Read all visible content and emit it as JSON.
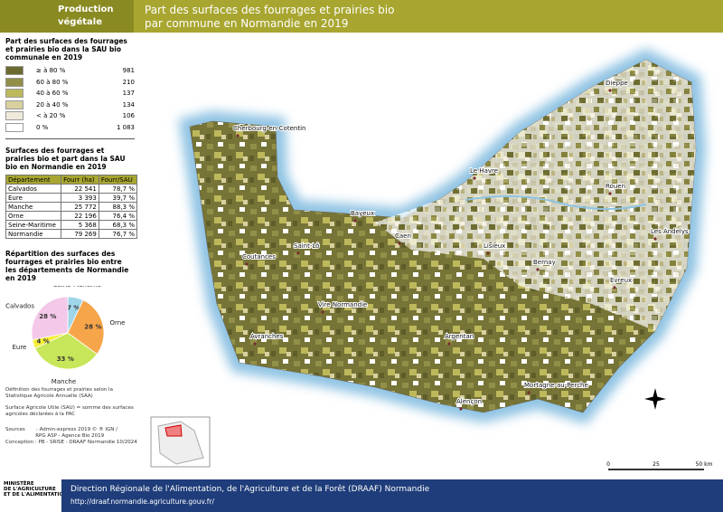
{
  "header": {
    "category": "Production végétale",
    "title_lines": [
      "Part des surfaces des fourrages et prairies bio",
      "par commune en Normandie en 2019"
    ]
  },
  "legend": {
    "title": "Part des surfaces des fourrages et prairies bio dans la SAU bio communale en 2019",
    "items": [
      {
        "label": "≥ à 80 %",
        "count": "981",
        "color": "#6b6a2f"
      },
      {
        "label": "60 à 80 %",
        "count": "210",
        "color": "#928f48"
      },
      {
        "label": "40 à 60 %",
        "count": "137",
        "color": "#bdb85c"
      },
      {
        "label": "20 à 40 %",
        "count": "134",
        "color": "#d9d0a0"
      },
      {
        "label": "< à 20 %",
        "count": "106",
        "color": "#efe9da"
      },
      {
        "label": "0 %",
        "count": "1 083",
        "color": "#ffffff"
      }
    ]
  },
  "table": {
    "title": "Surfaces des fourrages et prairies bio et part dans la SAU bio en Normandie en 2019",
    "columns": [
      "Département",
      "Fourr (ha)",
      "Fourr/SAU"
    ],
    "rows": [
      [
        "Calvados",
        "22 541",
        "78,7 %"
      ],
      [
        "Eure",
        "3 393",
        "39,7 %"
      ],
      [
        "Manche",
        "25 772",
        "88,3 %"
      ],
      [
        "Orne",
        "22 196",
        "76,4 %"
      ],
      [
        "Seine-Maritime",
        "5 368",
        "68,3 %"
      ],
      [
        "Normandie",
        "79 269",
        "76,7 %"
      ]
    ]
  },
  "chart_data": {
    "type": "pie",
    "title": "Répartition des surfaces des fourrages et prairies bio entre les départements de Normandie en 2019",
    "categories": [
      "Seine-Maritime",
      "Orne",
      "Manche",
      "Eure",
      "Calvados"
    ],
    "values": [
      7,
      28,
      33,
      4,
      28
    ],
    "value_labels": [
      "7 %",
      "28 %",
      "33 %",
      "4 %",
      "28 %"
    ],
    "colors": [
      "#9fd6ea",
      "#f7a54a",
      "#c8e65a",
      "#f5ee3a",
      "#f4c8e8"
    ]
  },
  "notes": [
    "Définition des fourrages et prairies selon la Statistique Agricole Annuelle (SAA)",
    "Surface Agricole Utile (SAU) = somme des surfaces agricoles déclarées à la PAC"
  ],
  "sources": [
    "Sources       : Admin-express 2019 © ® IGN /",
    "                   RPG ASP - Agence Bio 2019",
    "Conception : PB - SRISE - DRAAF Normandie 10/2024"
  ],
  "map": {
    "cities": [
      "Dieppe",
      "Cherbourg-en-Cotentin",
      "Le Havre",
      "Rouen",
      "Bayeux",
      "Caen",
      "Lisieux",
      "Les Andelys",
      "Saint-Lô",
      "Coutances",
      "Bernay",
      "Evreux",
      "Vire Normandie",
      "Avranches",
      "Argentan",
      "Mortagne-au-Perche",
      "Alençon"
    ],
    "scale": [
      "0",
      "25",
      "50 km"
    ]
  },
  "footer": {
    "ministry": [
      "MINISTÈRE",
      "DE L'AGRICULTURE",
      "ET DE L'ALIMENTATION"
    ],
    "title": "Direction Régionale de l'Alimentation, de l'Agriculture et de la Forêt (DRAAF) Normandie",
    "url": "http://draaf.normandie.agriculture.gouv.fr/"
  }
}
